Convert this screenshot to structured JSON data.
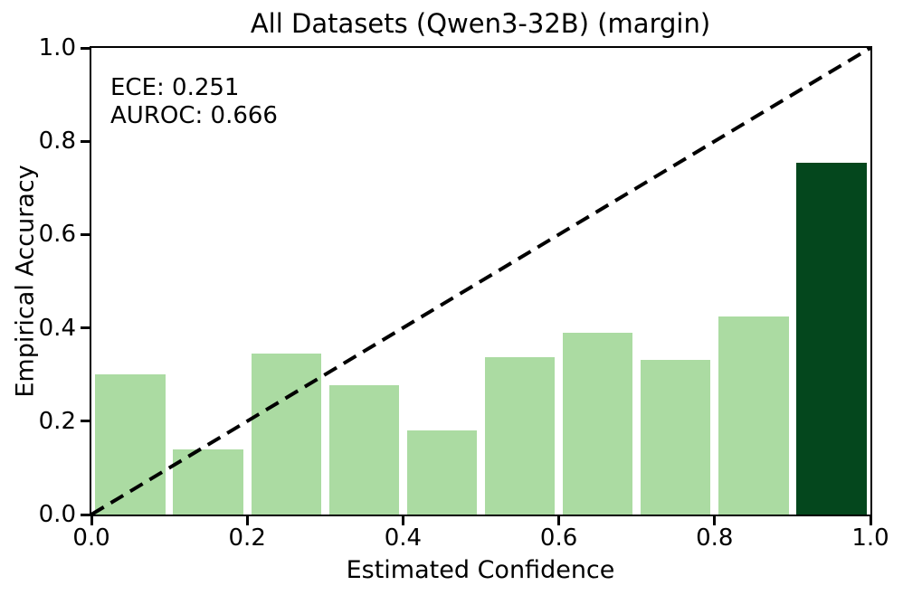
{
  "chart_data": {
    "type": "bar",
    "title": "All Datasets (Qwen3-32B) (margin)",
    "xlabel": "Estimated Confidence",
    "ylabel": "Empirical Accuracy",
    "xlim": [
      0.0,
      1.0
    ],
    "ylim": [
      0.0,
      1.0
    ],
    "grid": false,
    "bin_edges": [
      0.0,
      0.1,
      0.2,
      0.3,
      0.4,
      0.5,
      0.6,
      0.7,
      0.8,
      0.9,
      1.0
    ],
    "values": [
      0.3,
      0.14,
      0.345,
      0.277,
      0.181,
      0.338,
      0.39,
      0.332,
      0.425,
      0.753
    ],
    "bar_rel_width": 0.9,
    "bar_colors": [
      "#abdba2",
      "#abdba2",
      "#abdba2",
      "#abdba2",
      "#abdba2",
      "#abdba2",
      "#abdba2",
      "#abdba2",
      "#abdba2",
      "#04471d"
    ],
    "xticks": [
      0.0,
      0.2,
      0.4,
      0.6,
      0.8,
      1.0
    ],
    "xtick_labels": [
      "0.0",
      "0.2",
      "0.4",
      "0.6",
      "0.8",
      "1.0"
    ],
    "yticks": [
      0.0,
      0.2,
      0.4,
      0.6,
      0.8,
      1.0
    ],
    "ytick_labels": [
      "0.0",
      "0.2",
      "0.4",
      "0.6",
      "0.8",
      "1.0"
    ],
    "ece": 0.251,
    "auroc": 0.666,
    "annotations": [
      "ECE: 0.251",
      "AUROC: 0.666"
    ],
    "reference_line": {
      "x": [
        0.0,
        1.0
      ],
      "y": [
        0.0,
        1.0
      ],
      "style": "dashed",
      "color": "#000000"
    }
  }
}
